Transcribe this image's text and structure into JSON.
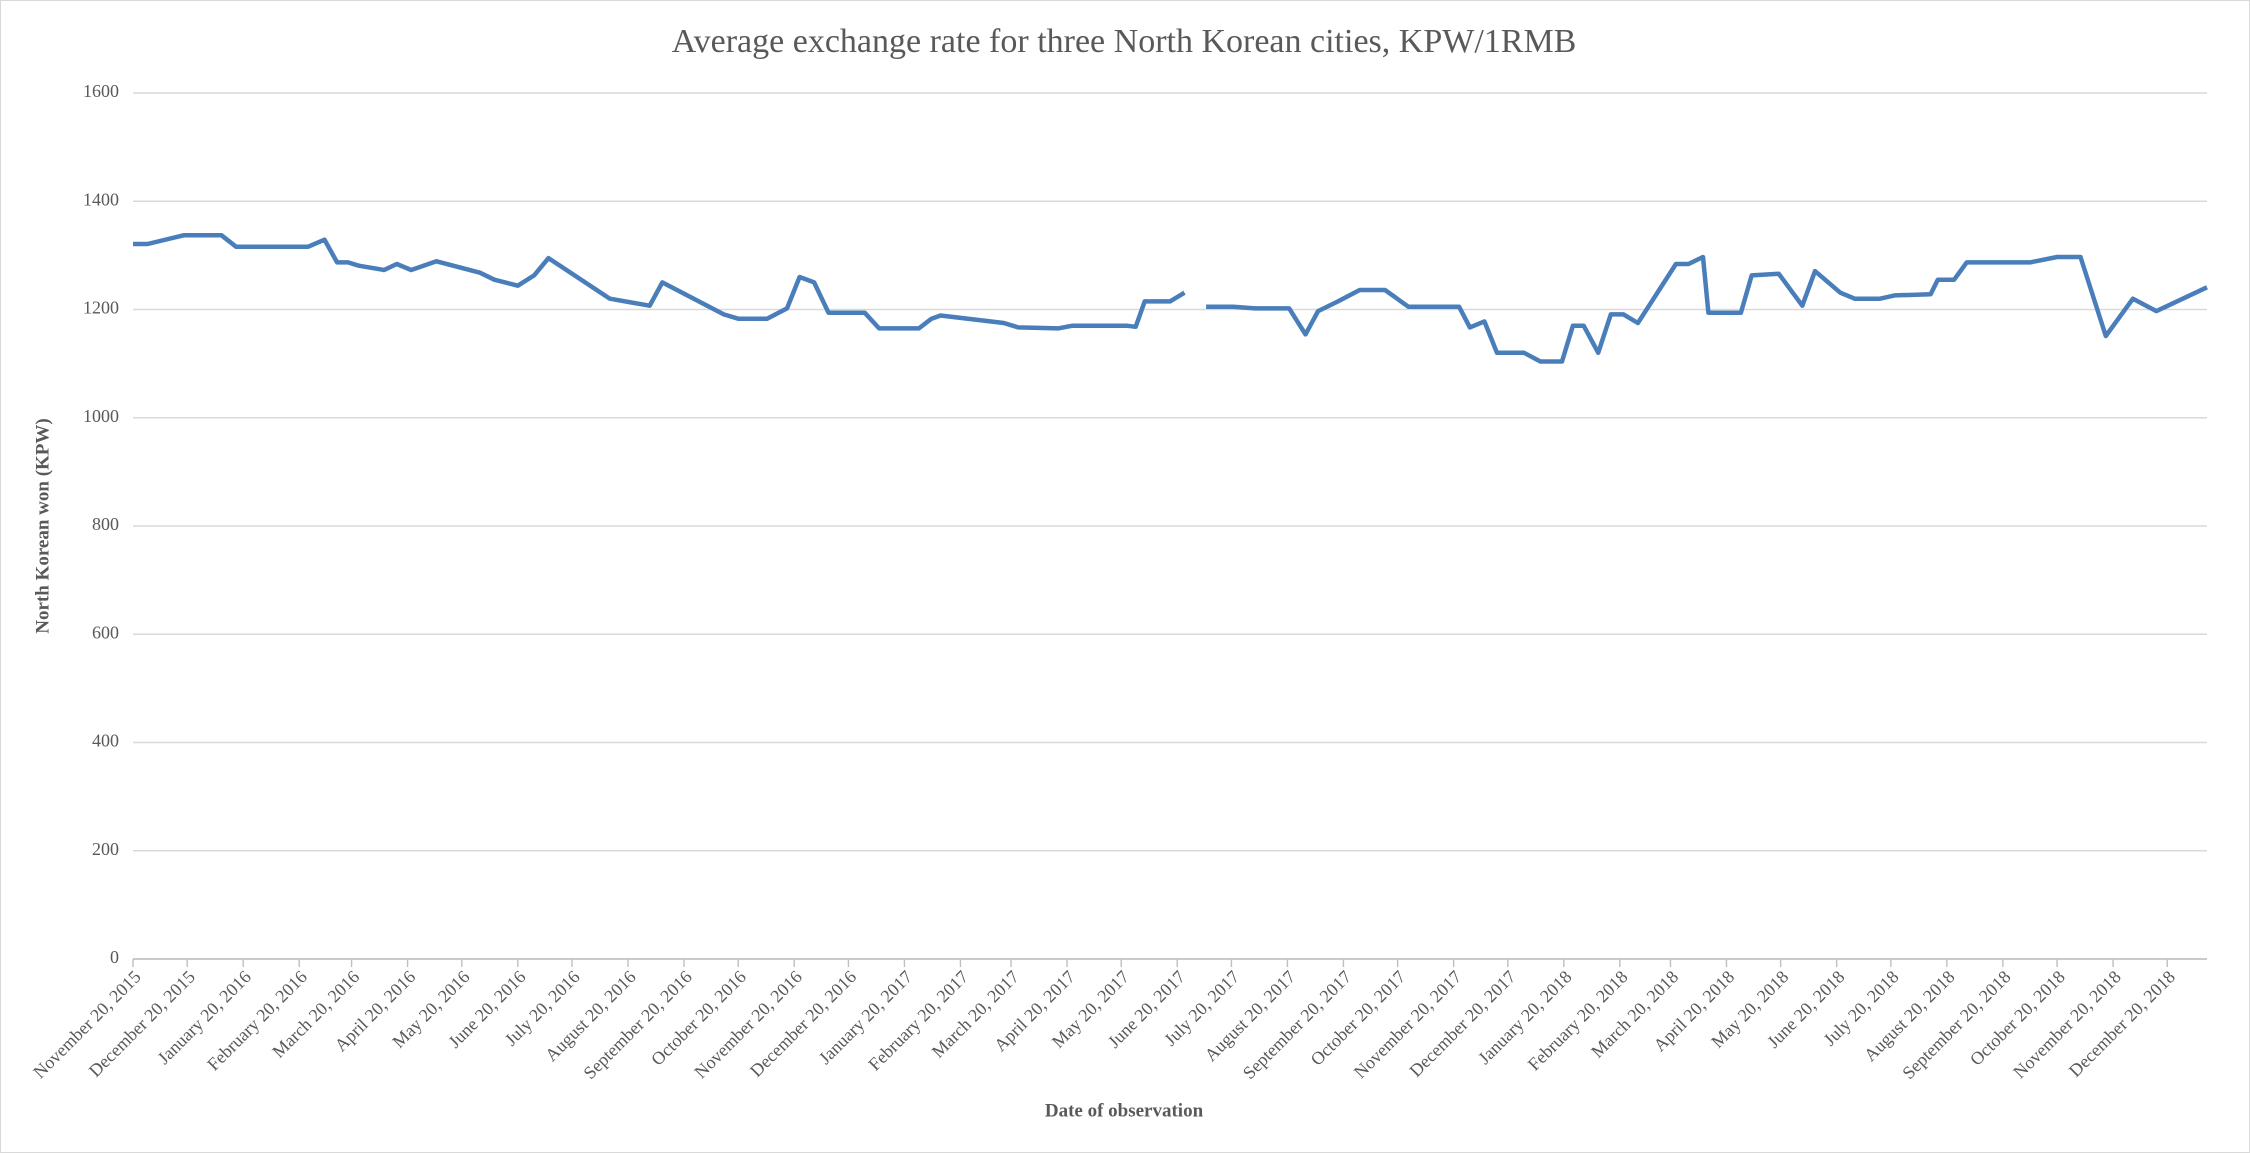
{
  "chart_data": {
    "type": "line",
    "title": "Average exchange rate for three North Korean cities, KPW/1RMB",
    "xlabel": "Date of observation",
    "ylabel": "North Korean won (KPW)",
    "x": [
      "2015-11-20",
      "2015-11-28",
      "2015-12-18",
      "2016-01-08",
      "2016-01-16",
      "2016-02-25",
      "2016-03-05",
      "2016-03-12",
      "2016-03-18",
      "2016-03-24",
      "2016-04-07",
      "2016-04-14",
      "2016-04-22",
      "2016-05-06",
      "2016-05-30",
      "2016-06-07",
      "2016-06-20",
      "2016-06-29",
      "2016-07-07",
      "2016-08-10",
      "2016-09-01",
      "2016-09-08",
      "2016-10-12",
      "2016-10-20",
      "2016-11-05",
      "2016-11-16",
      "2016-11-23",
      "2016-12-01",
      "2016-12-09",
      "2016-12-29",
      "2017-01-06",
      "2017-01-28",
      "2017-02-04",
      "2017-02-09",
      "2017-03-16",
      "2017-03-24",
      "2017-04-15",
      "2017-04-23",
      "2017-05-23",
      "2017-05-28",
      "2017-06-02",
      "2017-06-16",
      "2017-06-24",
      "2017-06-30",
      "2017-07-06",
      "2017-07-21",
      "2017-08-02",
      "2017-08-21",
      "2017-08-30",
      "2017-09-06",
      "2017-09-17",
      "2017-09-29",
      "2017-10-13",
      "2017-10-26",
      "2017-11-23",
      "2017-11-29",
      "2017-12-07",
      "2017-12-14",
      "2017-12-29",
      "2018-01-07",
      "2018-01-19",
      "2018-01-25",
      "2018-01-31",
      "2018-02-08",
      "2018-02-15",
      "2018-02-22",
      "2018-03-02",
      "2018-03-23",
      "2018-03-30",
      "2018-04-07",
      "2018-04-10",
      "2018-04-28",
      "2018-05-04",
      "2018-05-19",
      "2018-06-01",
      "2018-06-08",
      "2018-06-22",
      "2018-06-30",
      "2018-07-14",
      "2018-07-22",
      "2018-08-11",
      "2018-08-15",
      "2018-08-24",
      "2018-08-31",
      "2018-10-05",
      "2018-10-20",
      "2018-11-02",
      "2018-11-16",
      "2018-12-01",
      "2018-12-14",
      "2019-01-11"
    ],
    "series": [
      {
        "color": "#4a7ebb",
        "values": [
          1321,
          1321,
          1337,
          1337,
          1316,
          1316,
          1329,
          1287,
          1287,
          1281,
          1273,
          1284,
          1273,
          1289,
          1268,
          1255,
          1244,
          1263,
          1295,
          1220,
          1207,
          1250,
          1191,
          1183,
          1183,
          1202,
          1260,
          1250,
          1194,
          1194,
          1165,
          1165,
          1183,
          1189,
          1175,
          1167,
          1165,
          1170,
          1170,
          1168,
          1215,
          1215,
          1231,
          null,
          1205,
          1205,
          1202,
          1202,
          1154,
          1197,
          1215,
          1236,
          1236,
          1205,
          1205,
          1167,
          1178,
          1120,
          1120,
          1104,
          1104,
          1170,
          1170,
          1120,
          1191,
          1191,
          1175,
          1284,
          1284,
          1297,
          1194,
          1194,
          1263,
          1266,
          1207,
          1271,
          1231,
          1220,
          1220,
          1226,
          1228,
          1255,
          1255,
          1287,
          1287,
          1297,
          1297,
          1151,
          1220,
          1197,
          1241
        ]
      }
    ],
    "xlim": [
      "2015-11-20",
      "2019-01-11"
    ],
    "xticks": [
      {
        "value": "2015-11-20",
        "label": "November 20, 2015"
      },
      {
        "value": "2015-12-20",
        "label": "December 20, 2015"
      },
      {
        "value": "2016-01-20",
        "label": "January 20, 2016"
      },
      {
        "value": "2016-02-20",
        "label": "February 20, 2016"
      },
      {
        "value": "2016-03-20",
        "label": "March 20, 2016"
      },
      {
        "value": "2016-04-20",
        "label": "April 20, 2016"
      },
      {
        "value": "2016-05-20",
        "label": "May 20, 2016"
      },
      {
        "value": "2016-06-20",
        "label": "June 20, 2016"
      },
      {
        "value": "2016-07-20",
        "label": "July 20, 2016"
      },
      {
        "value": "2016-08-20",
        "label": "August 20, 2016"
      },
      {
        "value": "2016-09-20",
        "label": "September 20, 2016"
      },
      {
        "value": "2016-10-20",
        "label": "October 20, 2016"
      },
      {
        "value": "2016-11-20",
        "label": "November 20, 2016"
      },
      {
        "value": "2016-12-20",
        "label": "December 20, 2016"
      },
      {
        "value": "2017-01-20",
        "label": "January 20, 2017"
      },
      {
        "value": "2017-02-20",
        "label": "February 20, 2017"
      },
      {
        "value": "2017-03-20",
        "label": "March 20, 2017"
      },
      {
        "value": "2017-04-20",
        "label": "April 20, 2017"
      },
      {
        "value": "2017-05-20",
        "label": "May 20, 2017"
      },
      {
        "value": "2017-06-20",
        "label": "June 20, 2017"
      },
      {
        "value": "2017-07-20",
        "label": "July 20, 2017"
      },
      {
        "value": "2017-08-20",
        "label": "August 20, 2017"
      },
      {
        "value": "2017-09-20",
        "label": "September 20, 2017"
      },
      {
        "value": "2017-10-20",
        "label": "October 20, 2017"
      },
      {
        "value": "2017-11-20",
        "label": "November 20, 2017"
      },
      {
        "value": "2017-12-20",
        "label": "December 20, 2017"
      },
      {
        "value": "2018-01-20",
        "label": "January 20, 2018"
      },
      {
        "value": "2018-02-20",
        "label": "February 20, 2018"
      },
      {
        "value": "2018-03-20",
        "label": "March 20, 2018"
      },
      {
        "value": "2018-04-20",
        "label": "April 20, 2018"
      },
      {
        "value": "2018-05-20",
        "label": "May 20, 2018"
      },
      {
        "value": "2018-06-20",
        "label": "June 20, 2018"
      },
      {
        "value": "2018-07-20",
        "label": "July 20, 2018"
      },
      {
        "value": "2018-08-20",
        "label": "August 20, 2018"
      },
      {
        "value": "2018-09-20",
        "label": "September 20, 2018"
      },
      {
        "value": "2018-10-20",
        "label": "October 20, 2018"
      },
      {
        "value": "2018-11-20",
        "label": "November 20, 2018"
      },
      {
        "value": "2018-12-20",
        "label": "December 20, 2018"
      }
    ],
    "ylim": [
      0,
      1600
    ],
    "yticks": [
      0,
      200,
      400,
      600,
      800,
      1000,
      1200,
      1400,
      1600
    ],
    "grid": true
  }
}
